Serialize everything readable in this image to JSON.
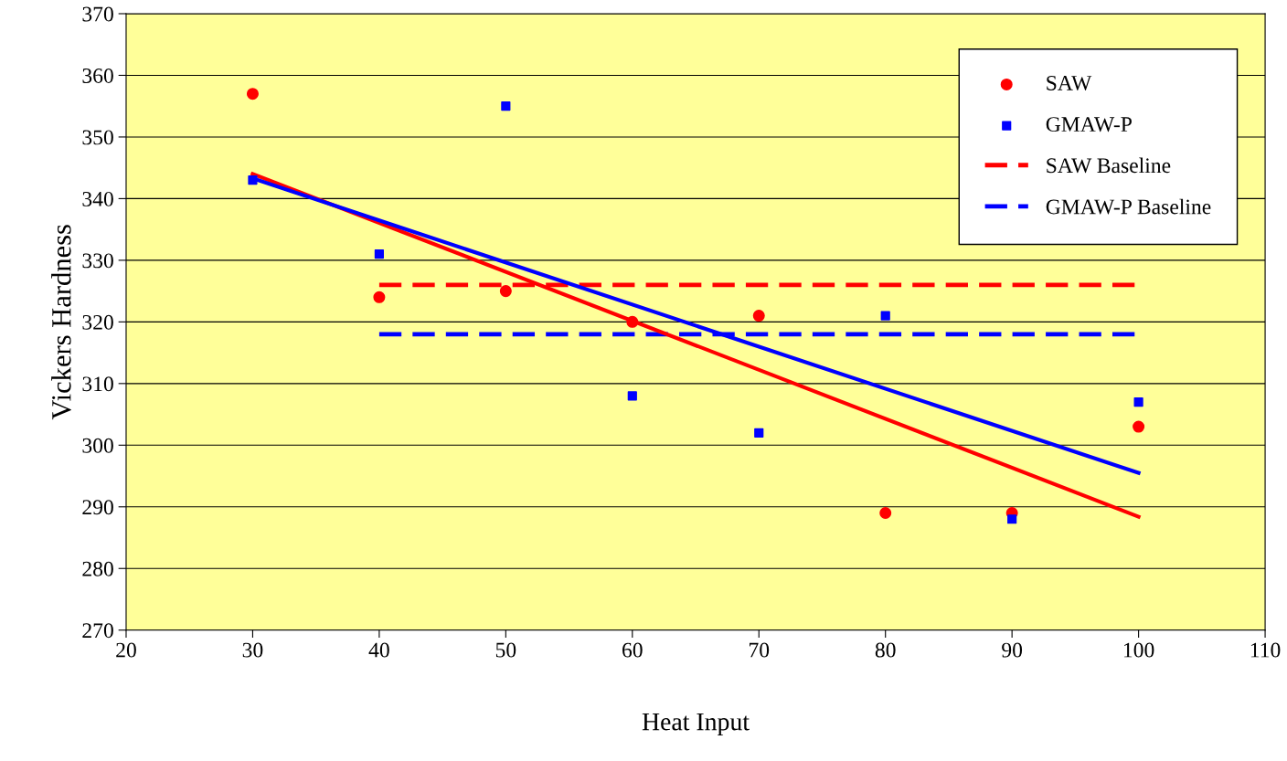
{
  "chart_data": {
    "type": "scatter",
    "xlabel": "Heat Input",
    "ylabel": "Vickers Hardness",
    "xlim": [
      20,
      110
    ],
    "xticks": [
      20,
      30,
      40,
      50,
      60,
      70,
      80,
      90,
      100,
      110
    ],
    "ylim": [
      270,
      370
    ],
    "yticks": [
      270,
      280,
      290,
      300,
      310,
      320,
      330,
      340,
      350,
      360,
      370
    ],
    "grid": "y",
    "legend": "top right",
    "series": [
      {
        "name": "SAW",
        "marker": "circle",
        "color": "#ff0000",
        "x": [
          30,
          40,
          50,
          60,
          70,
          80,
          90,
          100
        ],
        "values": [
          357,
          324,
          325,
          320,
          321,
          289,
          289,
          303
        ]
      },
      {
        "name": "GMAW-P",
        "marker": "square",
        "color": "#0000ff",
        "x": [
          30,
          40,
          50,
          60,
          70,
          80,
          90,
          100
        ],
        "values": [
          343,
          331,
          355,
          308,
          302,
          321,
          288,
          307
        ]
      },
      {
        "name": "SAW Baseline",
        "type": "line",
        "line_style": "dashed",
        "color": "#ff0000",
        "x": [
          40,
          100
        ],
        "values": [
          326,
          326
        ]
      },
      {
        "name": "GMAW-P Baseline",
        "type": "line",
        "line_style": "dashed",
        "color": "#0000ff",
        "x": [
          40,
          100
        ],
        "values": [
          318,
          318
        ]
      },
      {
        "type": "line",
        "line_style": "solid",
        "color": "#ff0000",
        "x": [
          30,
          100
        ],
        "values": [
          344,
          288.4
        ]
      },
      {
        "type": "line",
        "line_style": "solid",
        "color": "#0000ff",
        "x": [
          30,
          100
        ],
        "values": [
          343.3,
          295.5
        ]
      }
    ]
  }
}
